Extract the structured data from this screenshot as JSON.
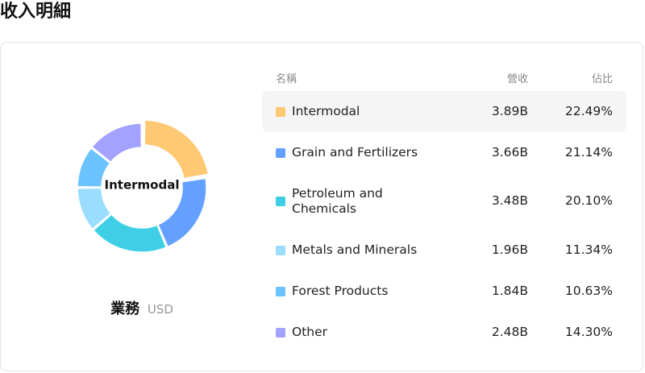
{
  "page": {
    "title": "收入明細"
  },
  "table": {
    "headers": {
      "name": "名稱",
      "revenue": "營收",
      "share": "佔比"
    }
  },
  "caption": {
    "main": "業務",
    "unit": "USD"
  },
  "chart_data": {
    "type": "pie",
    "center_label": "Intermodal",
    "categories": [
      "Intermodal",
      "Grain and Fertilizers",
      "Petroleum and Chemicals",
      "Metals and Minerals",
      "Forest Products",
      "Other"
    ],
    "revenue_labels": [
      "3.89B",
      "3.66B",
      "3.48B",
      "1.96B",
      "1.84B",
      "2.48B"
    ],
    "share_labels": [
      "22.49%",
      "21.14%",
      "20.10%",
      "11.34%",
      "10.63%",
      "14.30%"
    ],
    "values": [
      22.49,
      21.14,
      20.1,
      11.34,
      10.63,
      14.3
    ],
    "colors": [
      "#FFC872",
      "#64A0FF",
      "#3ECFE6",
      "#9BDDFF",
      "#6CC3FF",
      "#A3A3FF"
    ],
    "highlighted": "Intermodal"
  }
}
